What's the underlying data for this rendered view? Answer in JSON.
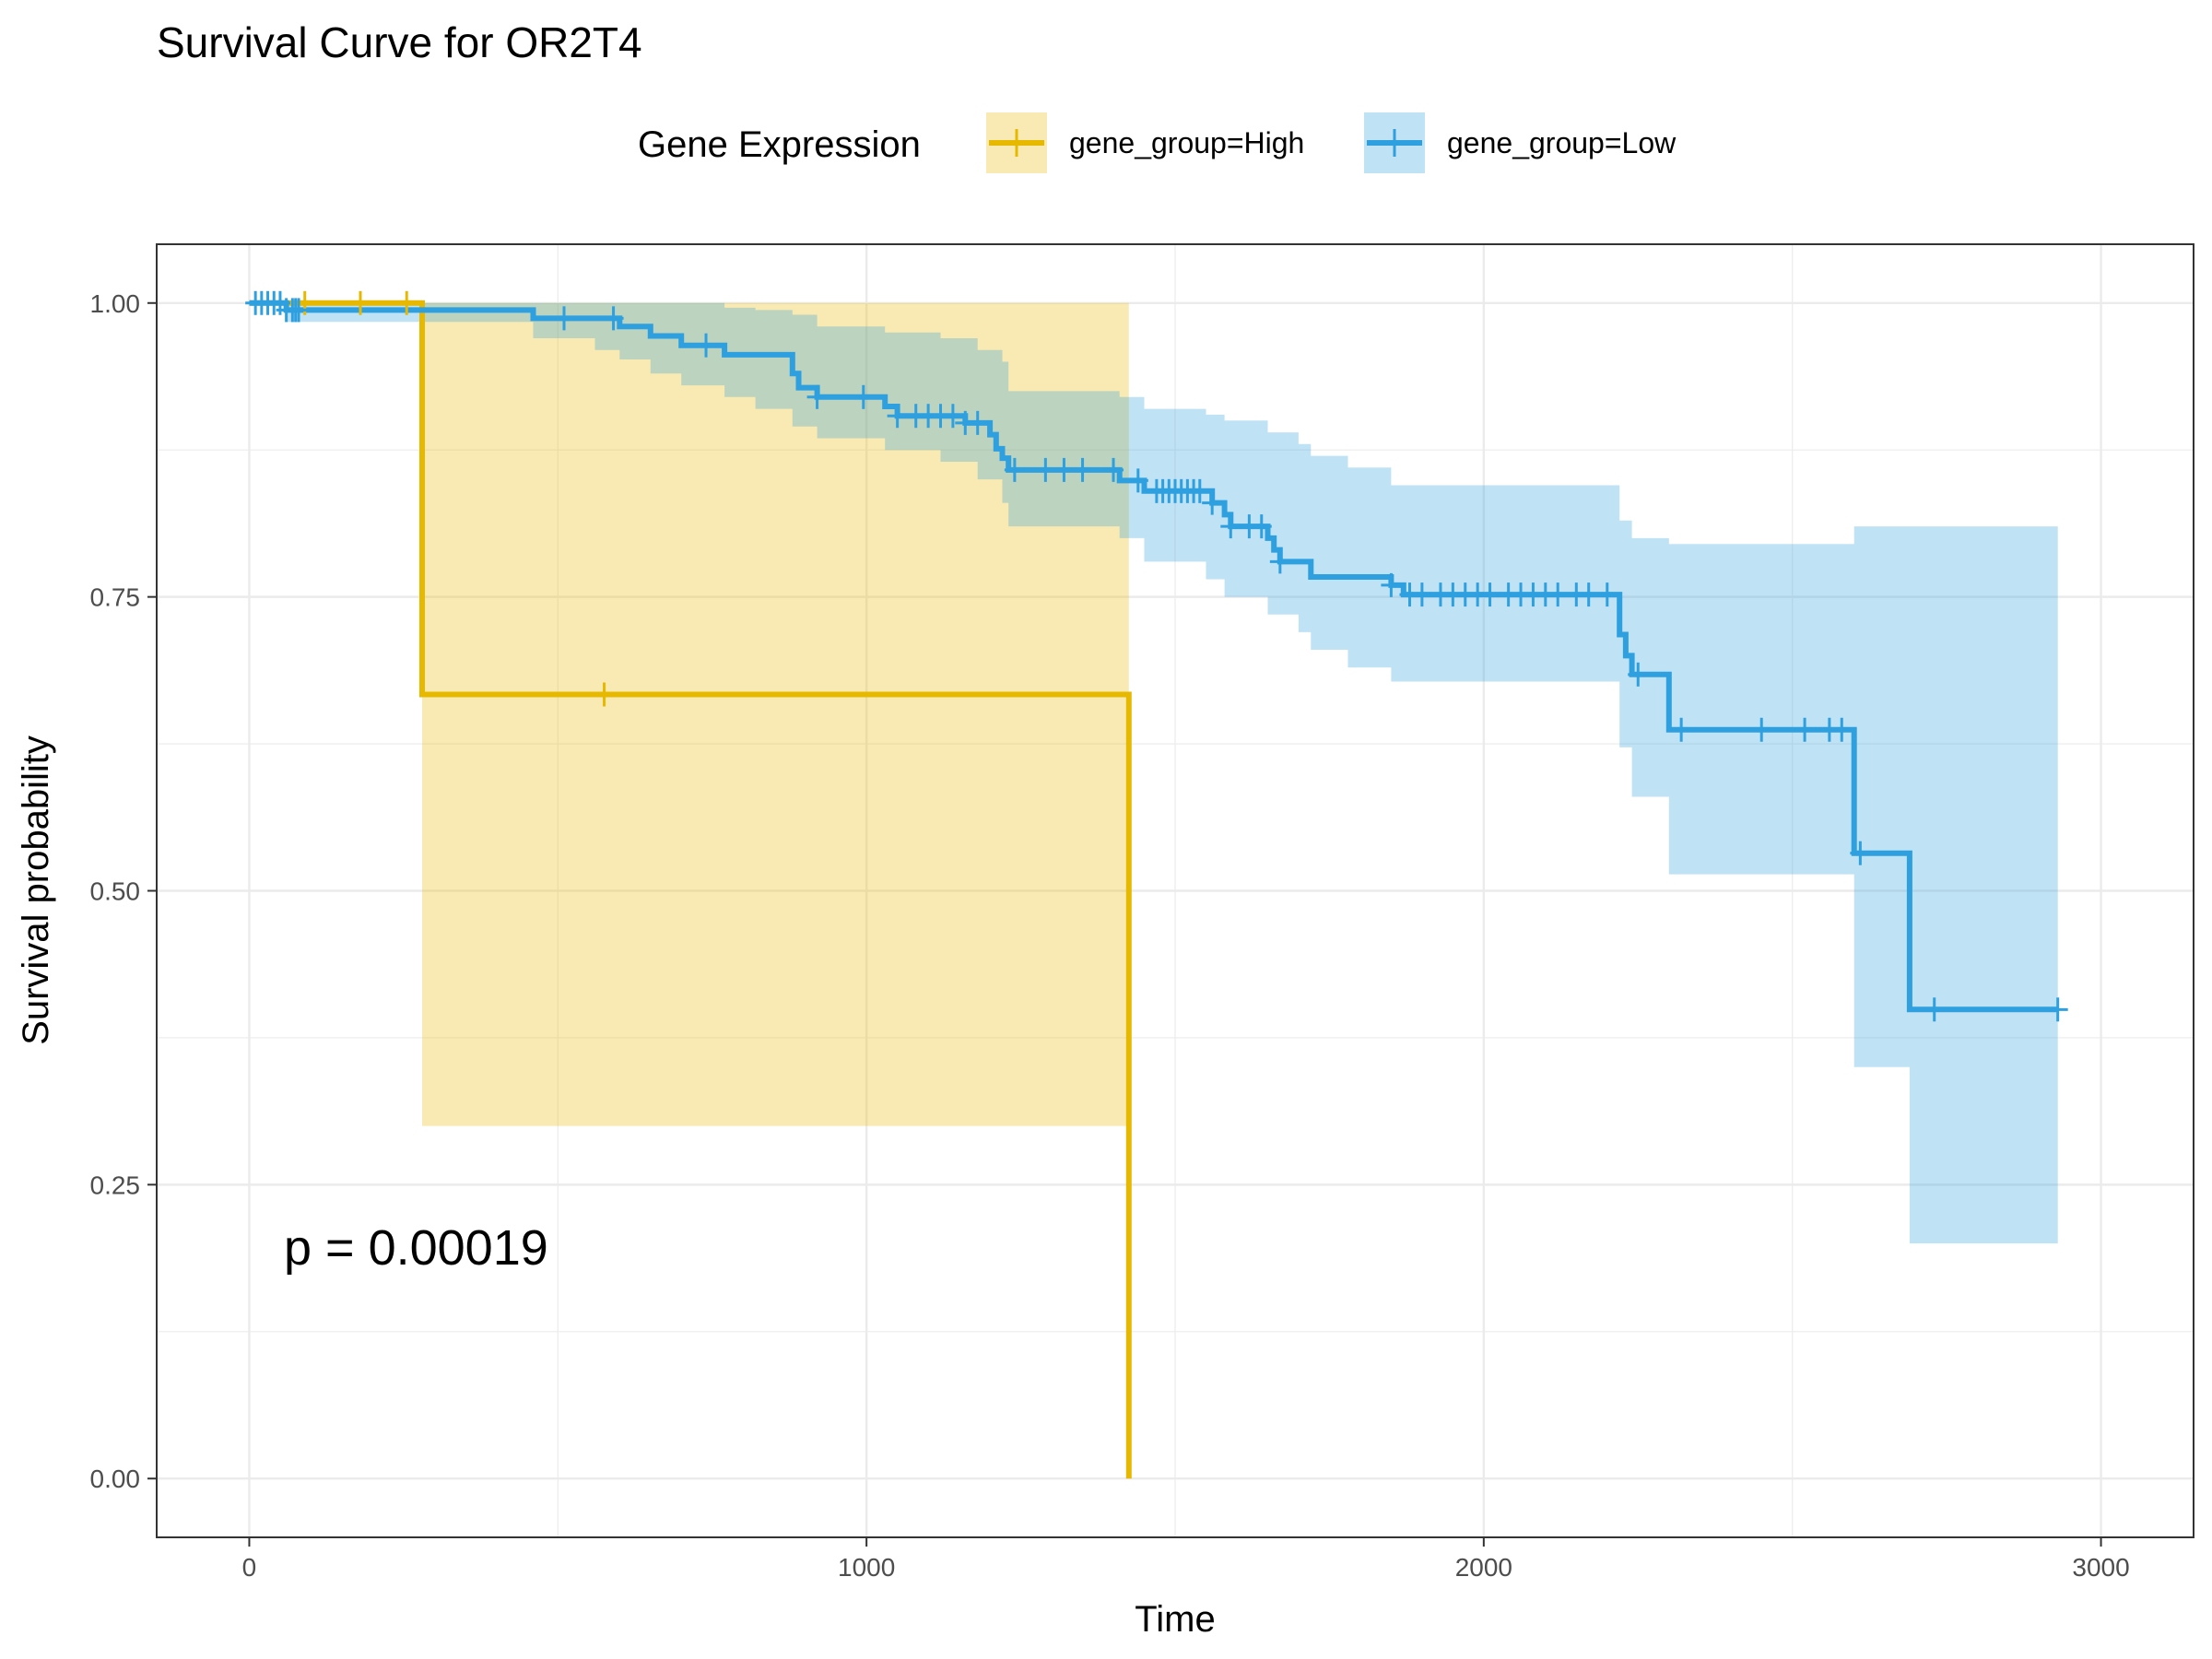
{
  "chart_data": {
    "type": "line",
    "title": "Survival Curve for OR2T4",
    "xlabel": "Time",
    "ylabel": "Survival probability",
    "xlim": [
      -150,
      3150
    ],
    "ylim": [
      -0.05,
      1.05
    ],
    "x_ticks": [
      0,
      1000,
      2000,
      3000
    ],
    "x_tick_labels": [
      "0",
      "1000",
      "2000",
      "3000"
    ],
    "y_ticks": [
      0,
      0.25,
      0.5,
      0.75,
      1.0
    ],
    "y_tick_labels": [
      "0.00",
      "0.25",
      "0.50",
      "0.75",
      "1.00"
    ],
    "grid": true,
    "legend": {
      "title": "Gene Expression",
      "position": "top",
      "entries": [
        "gene_group=High",
        "gene_group=Low"
      ]
    },
    "annotation": "p = 0.00019",
    "series": [
      {
        "name": "gene_group=High",
        "color": "#E7B800",
        "steps": [
          [
            0,
            1.0
          ],
          [
            280,
            0.667
          ],
          [
            1425,
            0.0
          ]
        ],
        "end_x": 1425,
        "ci": [
          [
            0,
            1.0,
            1.0
          ],
          [
            280,
            0.3,
            1.0
          ],
          [
            1425,
            0.3,
            1.0
          ]
        ],
        "censor_x": [
          90,
          180,
          255,
          575
        ]
      },
      {
        "name": "gene_group=Low",
        "color": "#2E9FDF",
        "steps": [
          [
            0,
            1.0
          ],
          [
            60,
            0.994
          ],
          [
            460,
            0.987
          ],
          [
            600,
            0.98
          ],
          [
            650,
            0.972
          ],
          [
            700,
            0.964
          ],
          [
            770,
            0.956
          ],
          [
            880,
            0.94
          ],
          [
            890,
            0.928
          ],
          [
            920,
            0.92
          ],
          [
            1030,
            0.912
          ],
          [
            1050,
            0.904
          ],
          [
            1160,
            0.898
          ],
          [
            1200,
            0.888
          ],
          [
            1210,
            0.876
          ],
          [
            1220,
            0.868
          ],
          [
            1230,
            0.858
          ],
          [
            1410,
            0.849
          ],
          [
            1450,
            0.84
          ],
          [
            1560,
            0.83
          ],
          [
            1580,
            0.82
          ],
          [
            1590,
            0.81
          ],
          [
            1650,
            0.8
          ],
          [
            1660,
            0.79
          ],
          [
            1670,
            0.78
          ],
          [
            1720,
            0.767
          ],
          [
            1850,
            0.76
          ],
          [
            1870,
            0.752
          ],
          [
            2220,
            0.718
          ],
          [
            2230,
            0.7
          ],
          [
            2240,
            0.684
          ],
          [
            2300,
            0.637
          ],
          [
            2600,
            0.532
          ],
          [
            2690,
            0.399
          ]
        ],
        "end_x": 2930,
        "ci": [
          [
            0,
            1.0,
            1.0
          ],
          [
            60,
            0.984,
            1.0
          ],
          [
            460,
            0.97,
            1.0
          ],
          [
            560,
            0.96,
            1.0
          ],
          [
            600,
            0.952,
            1.0
          ],
          [
            650,
            0.94,
            1.0
          ],
          [
            700,
            0.93,
            1.0
          ],
          [
            770,
            0.92,
            0.996
          ],
          [
            820,
            0.91,
            0.994
          ],
          [
            880,
            0.895,
            0.99
          ],
          [
            920,
            0.885,
            0.98
          ],
          [
            1030,
            0.875,
            0.975
          ],
          [
            1120,
            0.865,
            0.97
          ],
          [
            1180,
            0.85,
            0.96
          ],
          [
            1220,
            0.83,
            0.95
          ],
          [
            1230,
            0.81,
            0.925
          ],
          [
            1410,
            0.8,
            0.92
          ],
          [
            1450,
            0.78,
            0.91
          ],
          [
            1550,
            0.765,
            0.905
          ],
          [
            1580,
            0.75,
            0.9
          ],
          [
            1650,
            0.735,
            0.89
          ],
          [
            1700,
            0.72,
            0.88
          ],
          [
            1720,
            0.705,
            0.87
          ],
          [
            1780,
            0.69,
            0.86
          ],
          [
            1850,
            0.678,
            0.845
          ],
          [
            2220,
            0.622,
            0.815
          ],
          [
            2240,
            0.58,
            0.8
          ],
          [
            2300,
            0.514,
            0.795
          ],
          [
            2600,
            0.35,
            0.81
          ],
          [
            2690,
            0.2,
            0.81
          ],
          [
            2920,
            0.2,
            0.81
          ]
        ],
        "censor_x": [
          10,
          20,
          30,
          40,
          50,
          60,
          70,
          75,
          80,
          510,
          590,
          740,
          920,
          995,
          1050,
          1080,
          1100,
          1120,
          1140,
          1160,
          1180,
          1240,
          1290,
          1320,
          1350,
          1400,
          1440,
          1470,
          1480,
          1490,
          1500,
          1510,
          1520,
          1530,
          1540,
          1560,
          1590,
          1620,
          1640,
          1670,
          1850,
          1880,
          1900,
          1930,
          1950,
          1970,
          1990,
          2010,
          2040,
          2060,
          2080,
          2100,
          2120,
          2150,
          2170,
          2200,
          2250,
          2320,
          2450,
          2520,
          2560,
          2580,
          2610,
          2730,
          2930
        ]
      }
    ]
  }
}
